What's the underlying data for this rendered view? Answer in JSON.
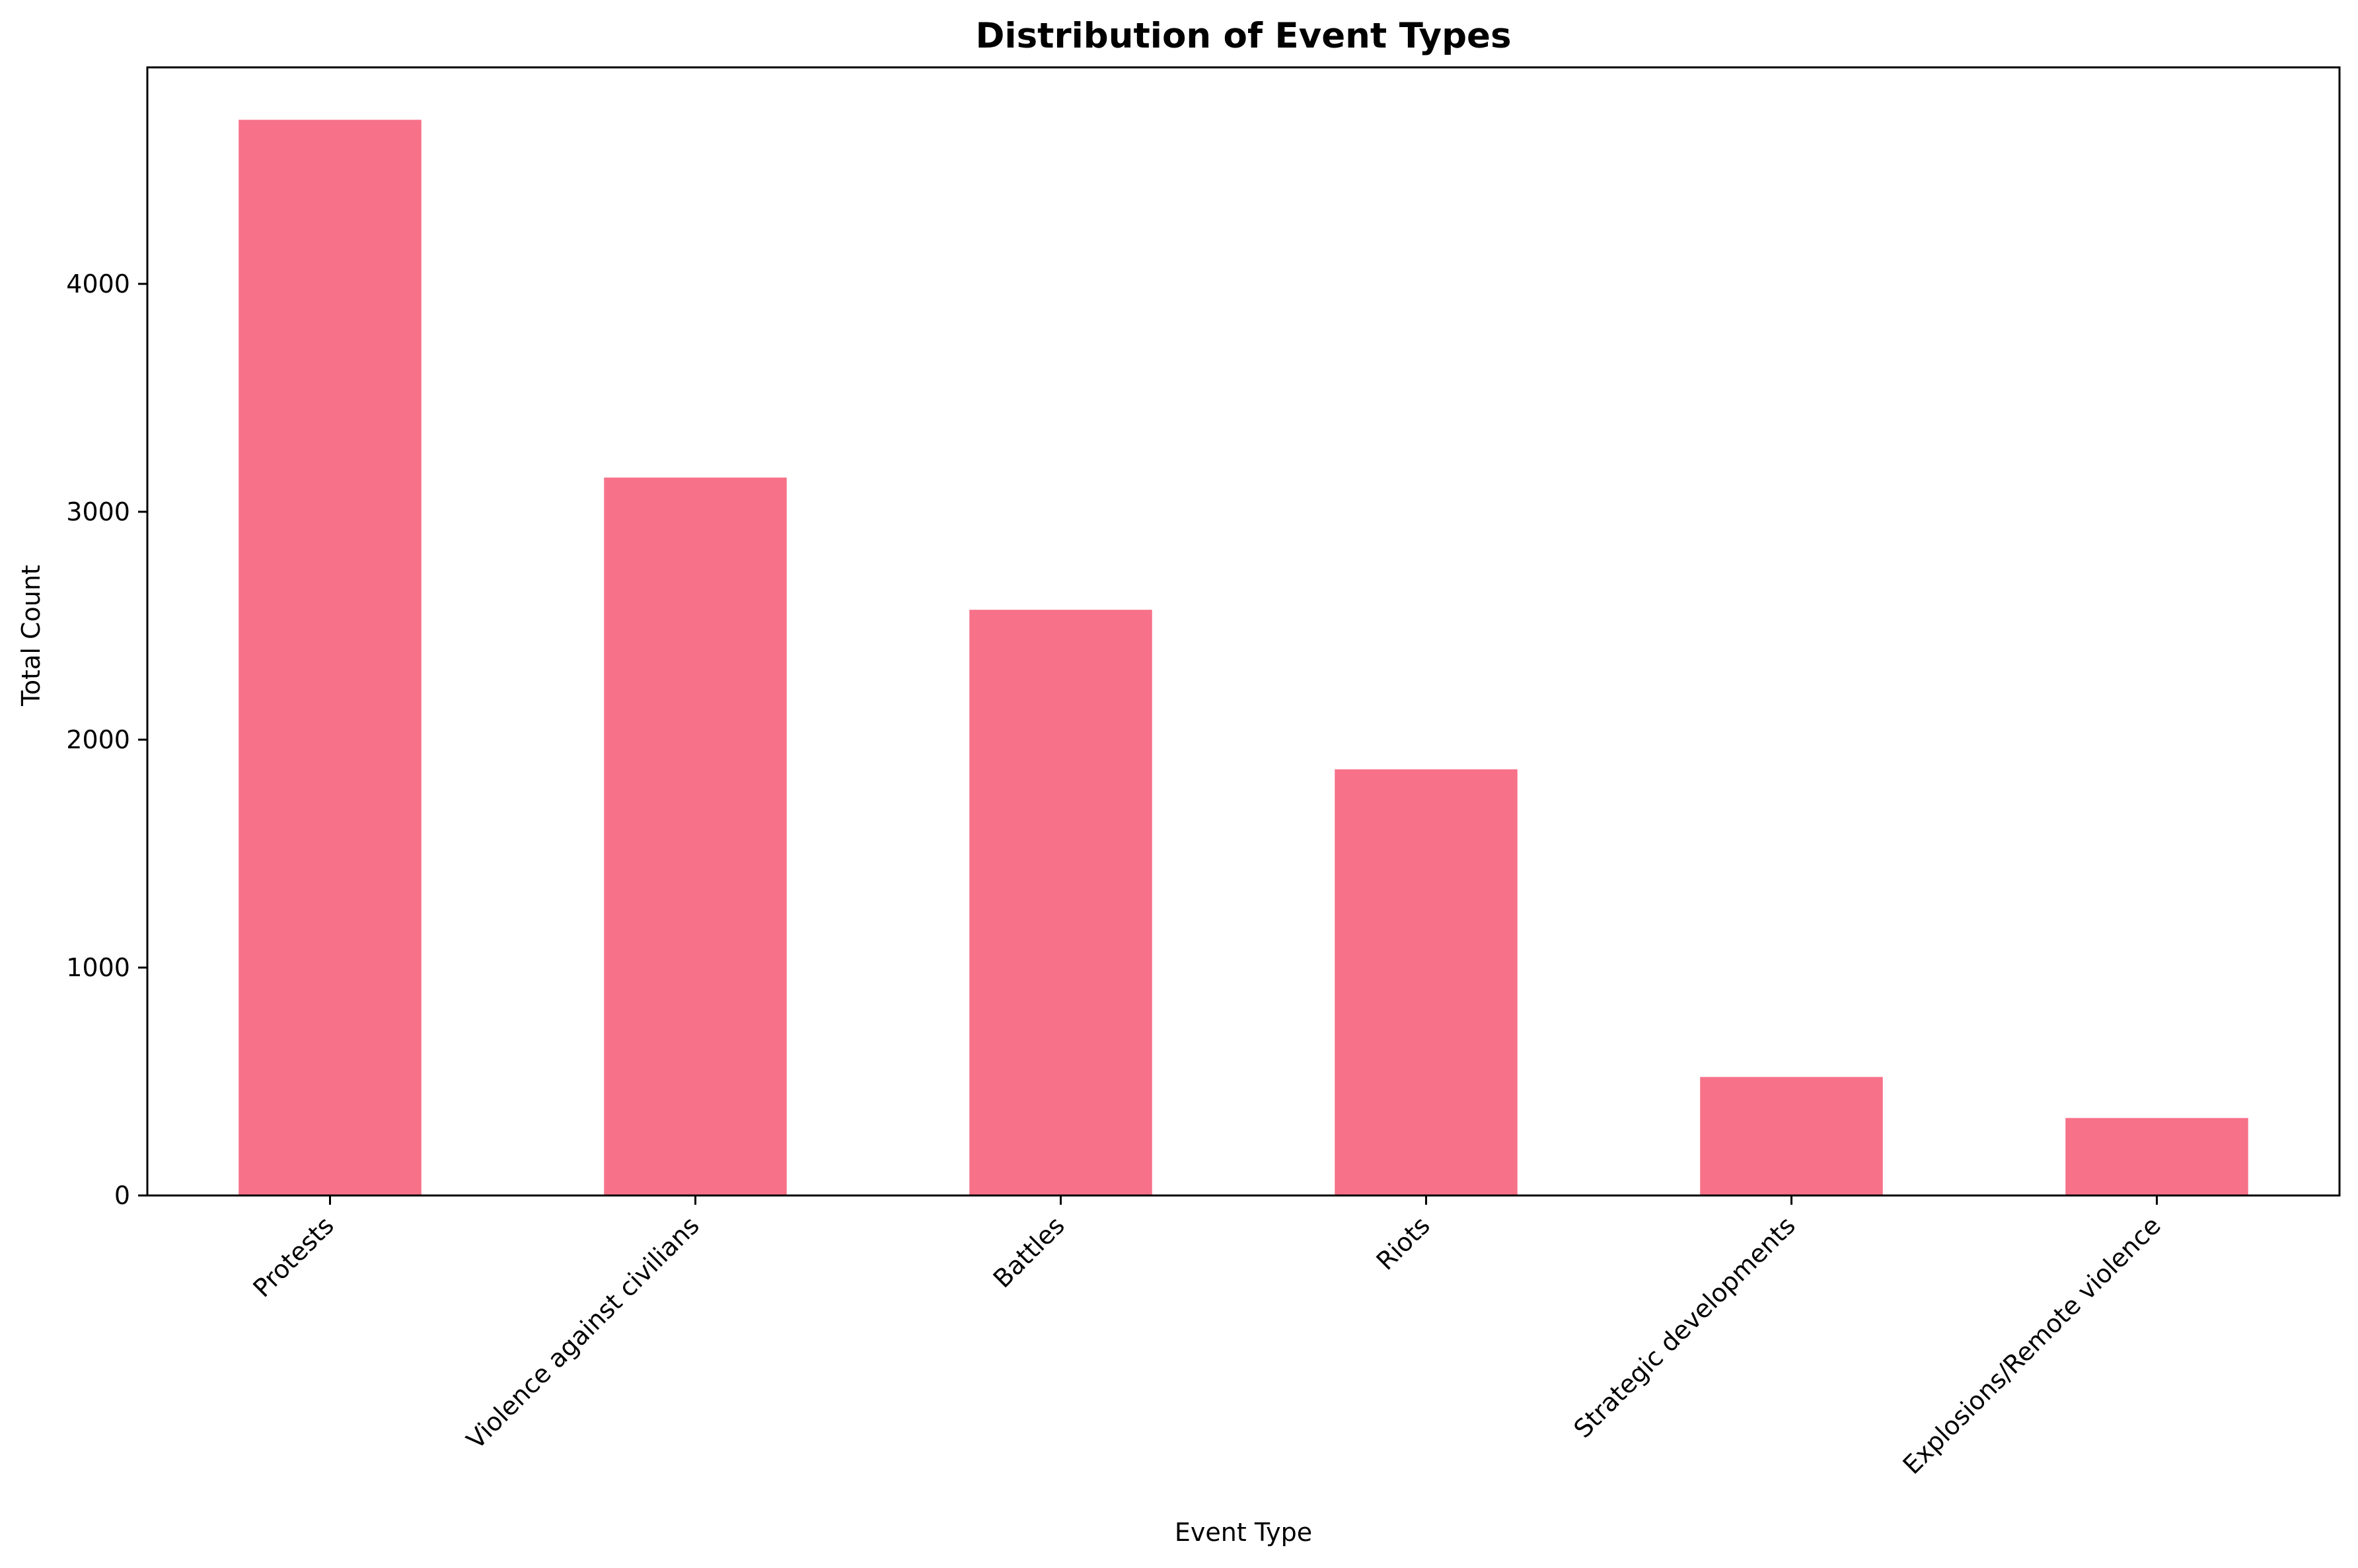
{
  "chart_data": {
    "type": "bar",
    "title": "Distribution of Event Types",
    "xlabel": "Event Type",
    "ylabel": "Total Count",
    "categories": [
      "Protests",
      "Violence against civilians",
      "Battles",
      "Riots",
      "Strategic developments",
      "Explosions/Remote violence"
    ],
    "values": [
      4720,
      3150,
      2570,
      1870,
      520,
      340
    ],
    "ylim": [
      0,
      4950
    ],
    "yticks": [
      0,
      1000,
      2000,
      3000,
      4000
    ],
    "ytick_labels": [
      "0",
      "1000",
      "2000",
      "3000",
      "4000"
    ],
    "bar_color": "#f77189",
    "grid": false,
    "legend": "none"
  }
}
